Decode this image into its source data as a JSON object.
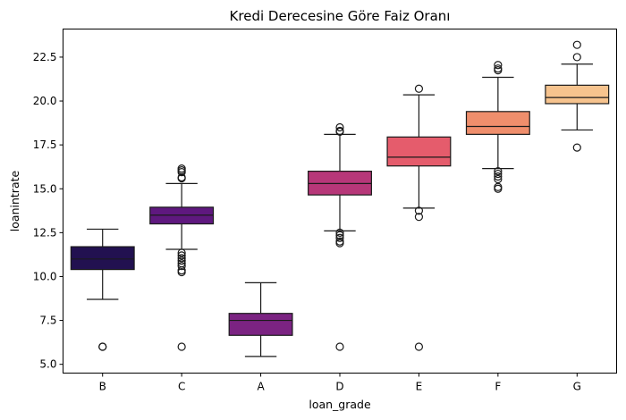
{
  "chart_data": {
    "type": "box",
    "title": "Kredi Derecesine Göre Faiz Oranı",
    "xlabel": "loan_grade",
    "ylabel": "loanintrate",
    "ylim": [
      4.5,
      24.1
    ],
    "yticks": [
      5.0,
      7.5,
      10.0,
      12.5,
      15.0,
      17.5,
      20.0,
      22.5
    ],
    "ytick_labels": [
      "5.0",
      "7.5",
      "10.0",
      "12.5",
      "15.0",
      "17.5",
      "20.0",
      "22.5"
    ],
    "grid": false,
    "categories": [
      "B",
      "C",
      "A",
      "D",
      "E",
      "F",
      "G"
    ],
    "boxes": [
      {
        "category": "B",
        "color": "#221150",
        "whisker_low": 8.7,
        "q1": 10.4,
        "median": 11.0,
        "q3": 11.7,
        "whisker_high": 12.7,
        "outliers": [
          6.0,
          6.0
        ]
      },
      {
        "category": "C",
        "color": "#5f187f",
        "whisker_low": 11.55,
        "q1": 13.0,
        "median": 13.5,
        "q3": 13.95,
        "whisker_high": 15.3,
        "outliers": [
          6.0,
          10.25,
          10.35,
          10.6,
          10.75,
          10.9,
          11.05,
          11.2,
          11.35,
          15.6,
          15.65,
          15.95,
          16.05,
          16.15
        ]
      },
      {
        "category": "A",
        "color": "#982d80",
        "whisker_low": 5.45,
        "q1": 6.65,
        "median": 7.5,
        "q3": 7.9,
        "whisker_high": 9.65,
        "outliers": []
      },
      {
        "category": "D",
        "color": "#d3436e",
        "whisker_low": 12.6,
        "q1": 14.65,
        "median": 15.3,
        "q3": 16.0,
        "whisker_high": 18.1,
        "outliers": [
          6.0,
          11.9,
          12.0,
          12.2,
          12.35,
          12.5,
          18.25,
          18.3,
          18.5
        ]
      },
      {
        "category": "E",
        "color": "#f8765c",
        "whisker_low": 13.9,
        "q1": 16.3,
        "median": 16.8,
        "q3": 17.95,
        "whisker_high": 20.35,
        "outliers": [
          6.0,
          13.4,
          13.75,
          20.7
        ]
      },
      {
        "category": "F",
        "color": "#febb81",
        "whisker_low": 16.15,
        "q1": 18.1,
        "median": 18.55,
        "q3": 19.4,
        "whisker_high": 21.35,
        "outliers": [
          15.0,
          15.1,
          15.55,
          15.7,
          15.85,
          16.0,
          21.75,
          21.85,
          22.05
        ]
      },
      {
        "category": "G",
        "color": "#fcfdbf",
        "whisker_low": 18.35,
        "q1": 19.85,
        "median": 20.2,
        "q3": 20.9,
        "whisker_high": 22.1,
        "outliers": [
          17.35,
          22.5,
          23.2
        ]
      }
    ],
    "box_colors_rendered": [
      "#221150",
      "#5f187f",
      "#7b2382",
      "#b73779",
      "#e55c6c",
      "#ef8e6c",
      "#f6c38e"
    ]
  }
}
